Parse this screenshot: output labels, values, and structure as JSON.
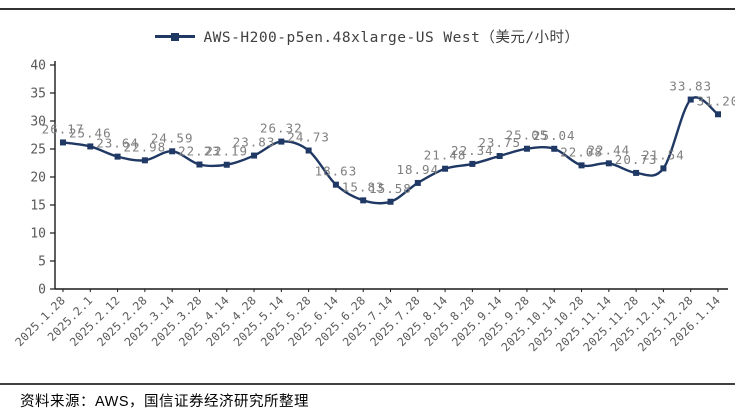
{
  "legend": {
    "label": "AWS-H200-p5en.48xlarge-US West（美元/小时）"
  },
  "footer": {
    "source": "资料来源：AWS，国信证券经济研究所整理"
  },
  "colors": {
    "line": "#203864",
    "marker": "#203864",
    "value_label": "#7f7f7f",
    "axis_text": "#595959",
    "axis_line": "#1a1a1a"
  },
  "chart_data": {
    "type": "line",
    "title": "",
    "xlabel": "",
    "ylabel": "",
    "ylim": [
      0,
      40
    ],
    "y_tick_step": 5,
    "grid": false,
    "legend_position": "top",
    "marker_style": "square",
    "data_labels": true,
    "categories": [
      "2025.1.28",
      "2025.2.1",
      "2025.2.12",
      "2025.2.28",
      "2025.3.14",
      "2025.3.28",
      "2025.4.14",
      "2025.4.28",
      "2025.5.14",
      "2025.5.28",
      "2025.6.14",
      "2025.6.28",
      "2025.7.14",
      "2025.7.28",
      "2025.8.14",
      "2025.8.28",
      "2025.9.14",
      "2025.9.28",
      "2025.10.14",
      "2025.10.28",
      "2025.11.14",
      "2025.11.28",
      "2025.12.14",
      "2025.12.28",
      "2026.1.14"
    ],
    "series": [
      {
        "name": "AWS-H200-p5en.48xlarge-US West（美元/小时）",
        "values": [
          26.17,
          25.46,
          23.64,
          22.98,
          24.59,
          22.23,
          22.19,
          23.83,
          26.32,
          24.73,
          18.63,
          15.83,
          15.58,
          18.94,
          21.48,
          22.34,
          23.75,
          25.05,
          25.04,
          22.08,
          22.44,
          20.73,
          21.54,
          33.83,
          31.2
        ]
      }
    ]
  }
}
